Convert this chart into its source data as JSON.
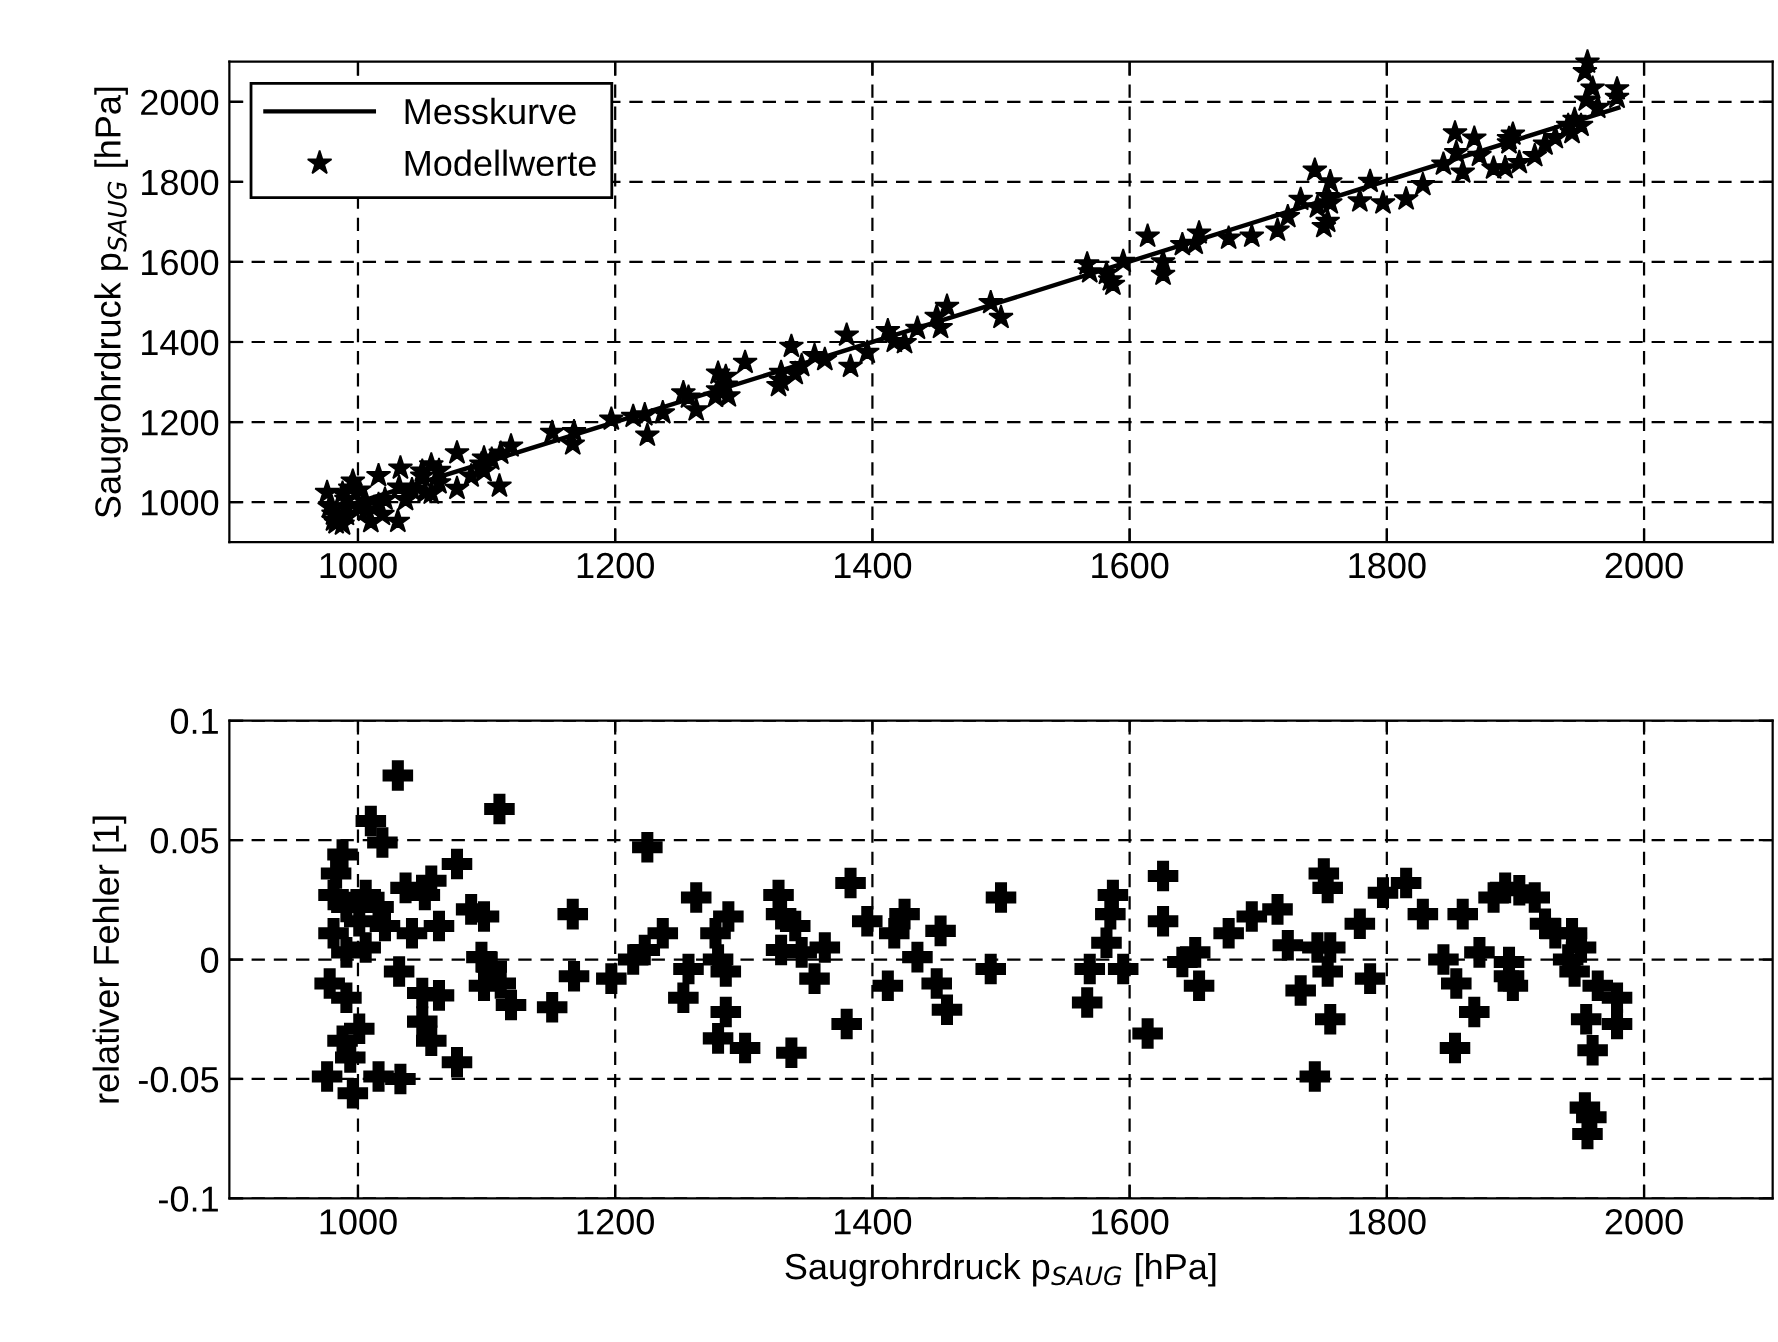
{
  "chart_data": [
    {
      "type": "scatter",
      "ylabel": "Saugrohrdruck p$_{SAUG}$ [hPa]",
      "xlim": [
        900,
        2100
      ],
      "ylim": [
        900,
        2100
      ],
      "xticks": [
        1000,
        1200,
        1400,
        1600,
        1800,
        2000
      ],
      "yticks": [
        1000,
        1200,
        1400,
        1600,
        1800,
        2000
      ],
      "grid": true,
      "legend": "top left",
      "series": [
        {
          "name": "Messkurve",
          "type": "line",
          "color": "#000000",
          "marker": "none",
          "line_style": "solid",
          "x": [
            980,
            1500,
            1980
          ],
          "values": [
            980,
            1500,
            1985
          ]
        },
        {
          "name": "Modellwerte",
          "type": "scatter",
          "color": "#000000",
          "marker": "star",
          "x": [
            1031,
            1010,
            1019,
            1110,
            1225,
            1077,
            988,
            983,
            981,
            991,
            1006,
            1016,
            981,
            1001,
            1037,
            1052,
            1057,
            1063,
            1042,
            1021,
            991,
            1006,
            978,
            991,
            1032,
            1050,
            1063,
            988,
            994,
            1001,
            976,
            996,
            1016,
            1033,
            1050,
            1057,
            1077,
            1088,
            1098,
            1096,
            1104,
            1098,
            1111,
            1119,
            1151,
            1167,
            1168,
            1197,
            1214,
            1223,
            1237,
            1263,
            1257,
            1253,
            1278,
            1288,
            1280,
            1286,
            1286,
            1280,
            1301,
            1327,
            1329,
            1340,
            1329,
            1345,
            1363,
            1355,
            1337,
            1383,
            1396,
            1412,
            1417,
            1425,
            1435,
            1453,
            1450,
            1458,
            1380,
            1500,
            1492,
            1567,
            1569,
            1582,
            1585,
            1587,
            1595,
            1614,
            1626,
            1626,
            1641,
            1651,
            1654,
            1677,
            1695,
            1715,
            1723,
            1733,
            1744,
            1751,
            1754,
            1746,
            1756,
            1754,
            1756,
            1779,
            1787,
            1797,
            1815,
            1828,
            1844,
            1854,
            1859,
            1868,
            1853,
            1872,
            1883,
            1892,
            1903,
            1915,
            1895,
            1895,
            1898,
            1923,
            1931,
            1944,
            1951,
            1941,
            1946,
            1964,
            1979,
            1979,
            1955,
            1960,
            1954,
            1956
          ],
          "values": [
            952,
            951,
            969,
            1040,
            1167,
            1034,
            945,
            948,
            955,
            969,
            979,
            994,
            970,
            985,
            1006,
            1024,
            1022,
            1048,
            1031,
            1007,
            988,
            1001,
            988,
            1007,
            1037,
            1065,
            1079,
            1022,
            1035,
            1030,
            1024,
            1052,
            1066,
            1085,
            1077,
            1093,
            1123,
            1065,
            1078,
            1095,
            1107,
            1110,
            1122,
            1140,
            1174,
            1145,
            1176,
            1207,
            1214,
            1218,
            1223,
            1230,
            1262,
            1273,
            1264,
            1265,
            1280,
            1292,
            1314,
            1322,
            1349,
            1291,
            1304,
            1321,
            1324,
            1341,
            1356,
            1366,
            1389,
            1339,
            1374,
            1428,
            1401,
            1398,
            1434,
            1436,
            1464,
            1489,
            1417,
            1461,
            1498,
            1595,
            1575,
            1571,
            1555,
            1544,
            1601,
            1664,
            1569,
            1600,
            1643,
            1646,
            1672,
            1659,
            1664,
            1679,
            1713,
            1756,
            1829,
            1688,
            1701,
            1737,
            1747,
            1763,
            1800,
            1752,
            1801,
            1747,
            1757,
            1793,
            1844,
            1873,
            1824,
            1909,
            1922,
            1866,
            1834,
            1835,
            1848,
            1865,
            1897,
            1908,
            1919,
            1894,
            1910,
            1923,
            1941,
            1941,
            1956,
            1986,
            2011,
            2032,
            2004,
            2034,
            2075,
            2099
          ]
        }
      ]
    },
    {
      "type": "scatter",
      "xlabel": "Saugrohrdruck p$_{SAUG}$ [hPa]",
      "ylabel": "relativer Fehler [1]",
      "xlim": [
        900,
        2100
      ],
      "ylim": [
        -0.1,
        0.1
      ],
      "xticks": [
        1000,
        1200,
        1400,
        1600,
        1800,
        2000
      ],
      "yticks": [
        -0.1,
        -0.05,
        0,
        0.05,
        0.1
      ],
      "grid": true,
      "marker": "cross",
      "series": [
        {
          "color": "#000000",
          "x": [
            1031,
            1010,
            1019,
            1110,
            1225,
            1077,
            988,
            983,
            981,
            991,
            1006,
            1016,
            981,
            1001,
            1037,
            1052,
            1057,
            1063,
            1042,
            1021,
            991,
            1006,
            978,
            991,
            1032,
            1050,
            1063,
            988,
            994,
            1001,
            976,
            996,
            1016,
            1033,
            1050,
            1057,
            1077,
            1088,
            1098,
            1096,
            1104,
            1098,
            1111,
            1119,
            1151,
            1167,
            1168,
            1197,
            1214,
            1223,
            1237,
            1263,
            1257,
            1253,
            1278,
            1288,
            1280,
            1286,
            1286,
            1280,
            1301,
            1327,
            1329,
            1340,
            1329,
            1345,
            1363,
            1355,
            1337,
            1383,
            1396,
            1412,
            1417,
            1425,
            1435,
            1453,
            1450,
            1458,
            1380,
            1500,
            1492,
            1567,
            1569,
            1582,
            1585,
            1587,
            1595,
            1614,
            1626,
            1626,
            1641,
            1651,
            1654,
            1677,
            1695,
            1715,
            1723,
            1733,
            1744,
            1751,
            1754,
            1746,
            1756,
            1754,
            1756,
            1779,
            1787,
            1797,
            1815,
            1828,
            1844,
            1854,
            1859,
            1868,
            1853,
            1872,
            1883,
            1892,
            1903,
            1915,
            1895,
            1895,
            1898,
            1923,
            1931,
            1944,
            1951,
            1941,
            1946,
            1964,
            1979,
            1979,
            1955,
            1960,
            1954,
            1959,
            1956
          ],
          "values": [
            0.077,
            0.058,
            0.049,
            0.063,
            0.047,
            0.04,
            0.044,
            0.036,
            0.027,
            0.022,
            0.027,
            0.022,
            0.011,
            0.016,
            0.03,
            0.027,
            0.033,
            0.014,
            0.011,
            0.014,
            0.003,
            0.005,
            -0.01,
            -0.016,
            -0.005,
            -0.014,
            -0.015,
            -0.034,
            -0.041,
            -0.029,
            -0.049,
            -0.056,
            -0.049,
            -0.05,
            -0.026,
            -0.034,
            -0.043,
            0.021,
            0.018,
            0.001,
            -0.003,
            -0.011,
            -0.01,
            -0.019,
            -0.02,
            0.019,
            -0.007,
            -0.008,
            0.0,
            0.004,
            0.011,
            0.026,
            -0.004,
            -0.016,
            0.011,
            0.018,
            0.0,
            -0.005,
            -0.022,
            -0.033,
            -0.037,
            0.027,
            0.019,
            0.014,
            0.004,
            0.003,
            0.005,
            -0.008,
            -0.039,
            0.032,
            0.016,
            -0.011,
            0.011,
            0.019,
            0.001,
            0.012,
            -0.01,
            -0.021,
            -0.027,
            0.026,
            -0.004,
            -0.018,
            -0.004,
            0.007,
            0.019,
            0.027,
            -0.004,
            -0.031,
            0.035,
            0.016,
            -0.001,
            0.003,
            -0.011,
            0.011,
            0.018,
            0.021,
            0.006,
            -0.013,
            -0.049,
            0.036,
            0.03,
            0.005,
            0.005,
            -0.005,
            -0.025,
            0.015,
            -0.008,
            0.028,
            0.032,
            0.019,
            0.0,
            -0.01,
            0.019,
            -0.022,
            -0.037,
            0.003,
            0.026,
            0.03,
            0.029,
            0.026,
            -0.001,
            -0.007,
            -0.011,
            0.015,
            0.011,
            0.011,
            0.005,
            0.0,
            -0.005,
            -0.011,
            -0.016,
            -0.027,
            -0.025,
            -0.038,
            -0.062,
            -0.066,
            -0.073
          ]
        }
      ]
    }
  ]
}
